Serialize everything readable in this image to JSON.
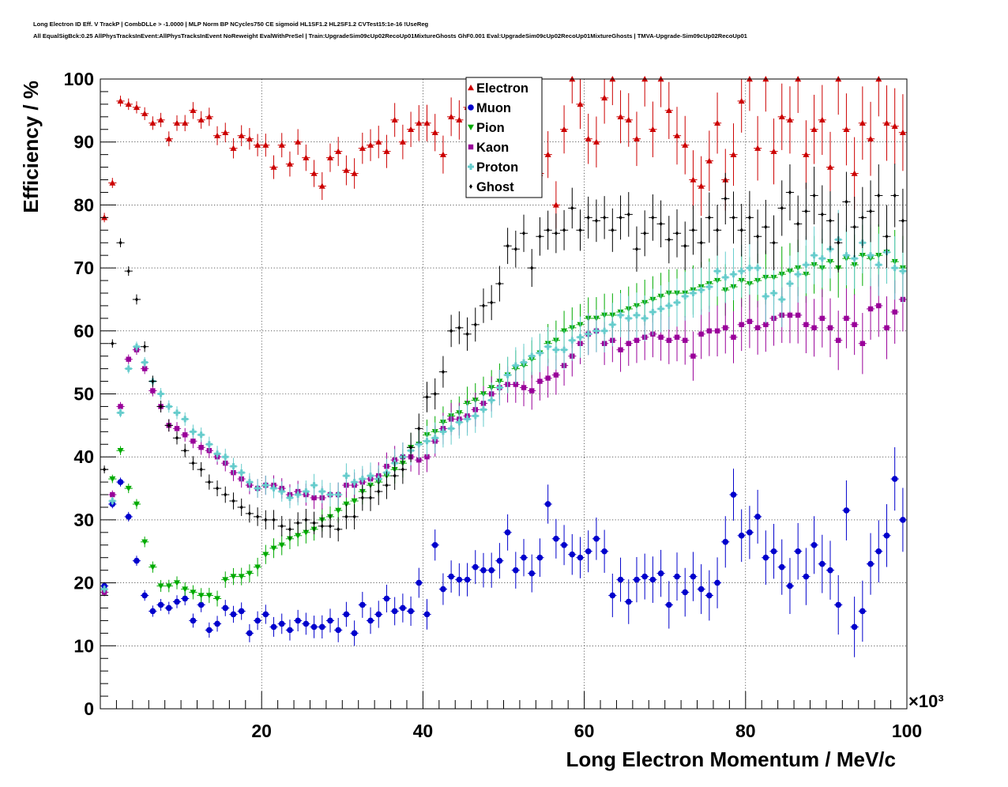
{
  "title": {
    "line1": "Long Electron ID Eff. V TrackP | CombDLLe > -1.0000 | MLP Norm BP NCycles750 CE sigmoid HL1SF1.2 HL2SF1.2 CVTest15:1e-16 !UseReg",
    "line2": "All EqualSigBck:0.25 AllPhysTracksInEvent:AllPhysTracksInEvent NoReweight EvalWithPreSel | Train:UpgradeSim09cUp02RecoUp01MixtureGhosts GhF0.001 Eval:UpgradeSim09cUp02RecoUp01MixtureGhosts | TMVA-Upgrade-Sim09cUp02RecoUp01"
  },
  "chart_data": {
    "type": "scatter",
    "xlabel": "Long Electron Momentum / MeV/c",
    "ylabel": "Efficiency / %",
    "x_multiplier": "×10³",
    "xlim": [
      0,
      100
    ],
    "ylim": [
      0,
      100
    ],
    "x_ticks": [
      20,
      40,
      60,
      80,
      100
    ],
    "y_ticks": [
      0,
      10,
      20,
      30,
      40,
      50,
      60,
      70,
      80,
      90,
      100
    ],
    "grid": true,
    "legend_position": "top-center",
    "x": [
      0.5,
      1.5,
      2.5,
      3.5,
      4.5,
      5.5,
      6.5,
      7.5,
      8.5,
      9.5,
      10.5,
      11.5,
      12.5,
      13.5,
      14.5,
      15.5,
      16.5,
      17.5,
      18.5,
      19.5,
      20.5,
      21.5,
      22.5,
      23.5,
      24.5,
      25.5,
      26.5,
      27.5,
      28.5,
      29.5,
      30.5,
      31.5,
      32.5,
      33.5,
      34.5,
      35.5,
      36.5,
      37.5,
      38.5,
      39.5,
      40.5,
      41.5,
      42.5,
      43.5,
      44.5,
      45.5,
      46.5,
      47.5,
      48.5,
      49.5,
      50.5,
      51.5,
      52.5,
      53.5,
      54.5,
      55.5,
      56.5,
      57.5,
      58.5,
      59.5,
      60.5,
      61.5,
      62.5,
      63.5,
      64.5,
      65.5,
      66.5,
      67.5,
      68.5,
      69.5,
      70.5,
      71.5,
      72.5,
      73.5,
      74.5,
      75.5,
      76.5,
      77.5,
      78.5,
      79.5,
      80.5,
      81.5,
      82.5,
      83.5,
      84.5,
      85.5,
      86.5,
      87.5,
      88.5,
      89.5,
      90.5,
      91.5,
      92.5,
      93.5,
      94.5,
      95.5,
      96.5,
      97.5,
      98.5,
      99.5
    ],
    "series": [
      {
        "name": "Electron",
        "color": "#cc0000",
        "marker": "triangle-up",
        "values": [
          78,
          83.5,
          96.5,
          96,
          95.5,
          94.5,
          93,
          93.5,
          90.5,
          93,
          93,
          95,
          93.5,
          94,
          91,
          91.5,
          89,
          91,
          90.5,
          89.5,
          89.5,
          86,
          89.5,
          86.5,
          90,
          87.5,
          85,
          83,
          87.5,
          88.5,
          85.5,
          85,
          89,
          89.5,
          90,
          88.5,
          93.5,
          90,
          92,
          93,
          93,
          91.5,
          88,
          94,
          93.5,
          95.5,
          91.5,
          89,
          92,
          91,
          87.5,
          95.5,
          90.5,
          94,
          85,
          88,
          80,
          92,
          100,
          96,
          90.5,
          90,
          97,
          100,
          94,
          93.5,
          90.5,
          100,
          92,
          100,
          95,
          91,
          89.5,
          84,
          83,
          87,
          93,
          84,
          88,
          96.5,
          100,
          89,
          100,
          88.5,
          94,
          93.5,
          100,
          88,
          92,
          93.5,
          86,
          100,
          92,
          85,
          93,
          90.5,
          100,
          93,
          92.5,
          91.5
        ]
      },
      {
        "name": "Muon",
        "color": "#0000cc",
        "marker": "circle",
        "values": [
          19.5,
          32.5,
          36,
          30.5,
          23.5,
          18,
          15.5,
          16.5,
          16,
          17,
          17.5,
          14,
          16.5,
          12.5,
          13.5,
          16,
          15,
          15.5,
          12,
          14,
          15,
          13,
          13.5,
          12.5,
          14,
          13.5,
          13,
          13,
          14,
          12.5,
          15,
          12,
          16.5,
          14,
          15,
          17.5,
          15.5,
          16,
          15.5,
          20,
          15,
          26,
          19,
          21,
          20.5,
          20.5,
          22.5,
          22,
          22,
          23.5,
          28,
          22,
          24,
          21.5,
          24,
          32.5,
          27,
          26,
          24.5,
          24,
          25,
          27,
          25,
          18,
          20.5,
          17,
          20.5,
          21,
          20.5,
          21.5,
          16.5,
          21,
          18.5,
          21,
          19,
          18,
          20,
          26.5,
          34,
          27.5,
          28,
          30.5,
          24,
          25,
          22.5,
          19.5,
          25,
          21,
          26,
          23,
          22,
          16.5,
          31.5,
          13,
          15.5,
          23,
          25,
          27.5,
          36.5,
          30
        ]
      },
      {
        "name": "Pion",
        "color": "#00aa00",
        "marker": "triangle-down",
        "values": [
          18.5,
          36.5,
          41,
          35,
          32.5,
          26.5,
          22.5,
          19.5,
          19.5,
          20,
          19,
          18.5,
          18,
          18,
          17.5,
          20.5,
          21,
          21,
          21.5,
          22.5,
          24.5,
          25.5,
          26,
          27,
          27.5,
          28,
          28.5,
          30,
          30.5,
          31.5,
          32.5,
          33,
          34.5,
          35.5,
          36,
          37,
          38,
          39,
          41.5,
          42,
          43.5,
          44,
          45.5,
          46.5,
          47,
          48.5,
          49,
          50,
          51,
          52,
          53,
          54,
          54.5,
          55.5,
          56.5,
          58,
          58.5,
          60,
          60.5,
          61,
          62,
          62,
          62.5,
          62.5,
          63,
          63.5,
          64,
          64.5,
          65,
          65.5,
          66,
          66,
          66,
          66.5,
          67,
          67.5,
          68,
          66.5,
          67,
          68,
          67.5,
          68,
          68.5,
          68.5,
          69,
          69.5,
          70,
          69,
          70.5,
          70,
          71,
          70,
          71.5,
          70.5,
          72,
          71.5,
          72,
          72.5,
          71,
          70
        ]
      },
      {
        "name": "Kaon",
        "color": "#990099",
        "marker": "square",
        "values": [
          18.5,
          34,
          48,
          55.5,
          57,
          54,
          50.5,
          48,
          45,
          44.5,
          43.5,
          42.5,
          41.5,
          41,
          40,
          39,
          37.5,
          36.5,
          35.5,
          35,
          35.5,
          35.5,
          35,
          34,
          34.5,
          34,
          33.5,
          33.5,
          34,
          34,
          35.5,
          35.5,
          36,
          36.5,
          37,
          38.5,
          39.5,
          40,
          40,
          39.5,
          40,
          42.5,
          44.5,
          46,
          46,
          46.5,
          47.5,
          48.5,
          50,
          51,
          51.5,
          51.5,
          51,
          50.5,
          52,
          52.5,
          53,
          54.5,
          56,
          58,
          59.5,
          60,
          58,
          58.5,
          57,
          58,
          58.5,
          59,
          59.5,
          59,
          58.5,
          59,
          58.5,
          56,
          59.5,
          60,
          60,
          60.5,
          59,
          61,
          61.5,
          60.5,
          61,
          62,
          62.5,
          62.5,
          62.5,
          61,
          60.5,
          62,
          60.5,
          58.5,
          62,
          61,
          58,
          63.5,
          64,
          60.5,
          63,
          65
        ]
      },
      {
        "name": "Proton",
        "color": "#66cccc",
        "marker": "cross",
        "values": [
          19,
          33,
          47,
          54,
          57.5,
          55,
          52,
          50,
          48,
          47,
          46,
          44,
          43.5,
          42,
          40.5,
          40,
          38.5,
          37.5,
          36,
          35,
          35.5,
          35,
          34.5,
          33.5,
          34,
          34.5,
          35.5,
          34.5,
          34,
          34,
          37,
          36,
          36.5,
          37,
          36.5,
          37.5,
          39,
          40,
          41,
          42,
          42.5,
          43,
          44,
          44.5,
          45.5,
          46,
          46.5,
          47.5,
          49,
          51,
          53,
          54.5,
          55,
          56,
          56.5,
          57.5,
          57,
          57,
          58.5,
          59,
          59.5,
          60,
          60,
          61,
          62.5,
          62,
          62.5,
          62,
          63,
          63.5,
          64,
          64.5,
          65.5,
          66,
          66.5,
          67,
          69.5,
          68.5,
          69,
          69.5,
          70,
          70,
          65.5,
          66,
          65,
          67.5,
          69,
          70.5,
          72,
          71.5,
          73,
          74.5,
          72,
          71.5,
          74,
          72,
          70.5,
          72.5,
          70,
          69.5
        ]
      },
      {
        "name": "Ghost",
        "color": "#000000",
        "marker": "diamond",
        "values": [
          38,
          58,
          74,
          69.5,
          65,
          57.5,
          52,
          48,
          45,
          43,
          41,
          39,
          38,
          36,
          35,
          34,
          33,
          32,
          31,
          30.5,
          30,
          30,
          29,
          28.5,
          29.5,
          30,
          29.5,
          29,
          29,
          28.5,
          30.5,
          30.5,
          33.5,
          33.5,
          34.5,
          35.5,
          37,
          38,
          41.5,
          44.5,
          49.5,
          50,
          53.5,
          60,
          60.5,
          59.5,
          61,
          64,
          64.5,
          67.5,
          73.5,
          73,
          75.5,
          70,
          75,
          76,
          75.5,
          76,
          79.5,
          76,
          78,
          77.5,
          78,
          76,
          78,
          78.5,
          73,
          75.5,
          78,
          77,
          74.5,
          75.5,
          73.5,
          76,
          74,
          78,
          76,
          81,
          78,
          76,
          78,
          75,
          76.5,
          74,
          79.5,
          82,
          77,
          79,
          81.5,
          78.5,
          77.5,
          74,
          80.5,
          76.5,
          78,
          79,
          81.5,
          75,
          81.5,
          77.5
        ]
      }
    ]
  }
}
